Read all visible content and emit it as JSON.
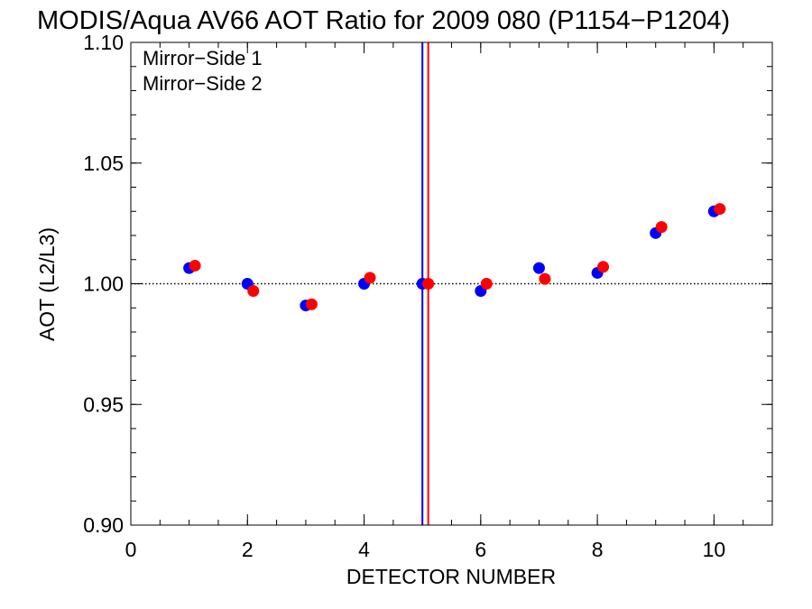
{
  "chart_data": {
    "type": "scatter",
    "title": "MODIS/Aqua AV66 AOT Ratio for 2009 080 (P1154−P1204)",
    "xlabel": "DETECTOR NUMBER",
    "ylabel": "AOT (L2/L3)",
    "xlim": [
      0,
      11
    ],
    "ylim": [
      0.9,
      1.1
    ],
    "x_ticks": [
      0,
      2,
      4,
      6,
      8,
      10
    ],
    "x_tick_labels": [
      "0",
      "2",
      "4",
      "6",
      "8",
      "10"
    ],
    "y_ticks": [
      0.9,
      0.95,
      1.0,
      1.05,
      1.1
    ],
    "y_tick_labels": [
      "0.90",
      "0.95",
      "1.00",
      "1.05",
      "1.10"
    ],
    "x_minor_step": 0.5,
    "y_minor_step": 0.01,
    "reference_line_y": 1.0,
    "grid": false,
    "legend_position": "top-left",
    "series": [
      {
        "name": "Mirror−Side 1",
        "color": "#0000ff",
        "x": [
          1,
          2,
          3,
          4,
          5,
          6,
          7,
          8,
          9,
          10
        ],
        "y": [
          1.0065,
          1.0,
          0.991,
          1.0,
          1.0,
          0.997,
          1.0065,
          1.0045,
          1.021,
          1.03
        ],
        "vertical_line_x": 5.0
      },
      {
        "name": "Mirror−Side 2",
        "color": "#ff0000",
        "x": [
          1.1,
          2.1,
          3.1,
          4.1,
          5.1,
          6.1,
          7.1,
          8.1,
          9.1,
          10.1
        ],
        "y": [
          1.0075,
          0.997,
          0.9915,
          1.0025,
          1.0,
          1.0,
          1.002,
          1.007,
          1.0235,
          1.031
        ],
        "vertical_line_x": 5.1
      }
    ]
  }
}
